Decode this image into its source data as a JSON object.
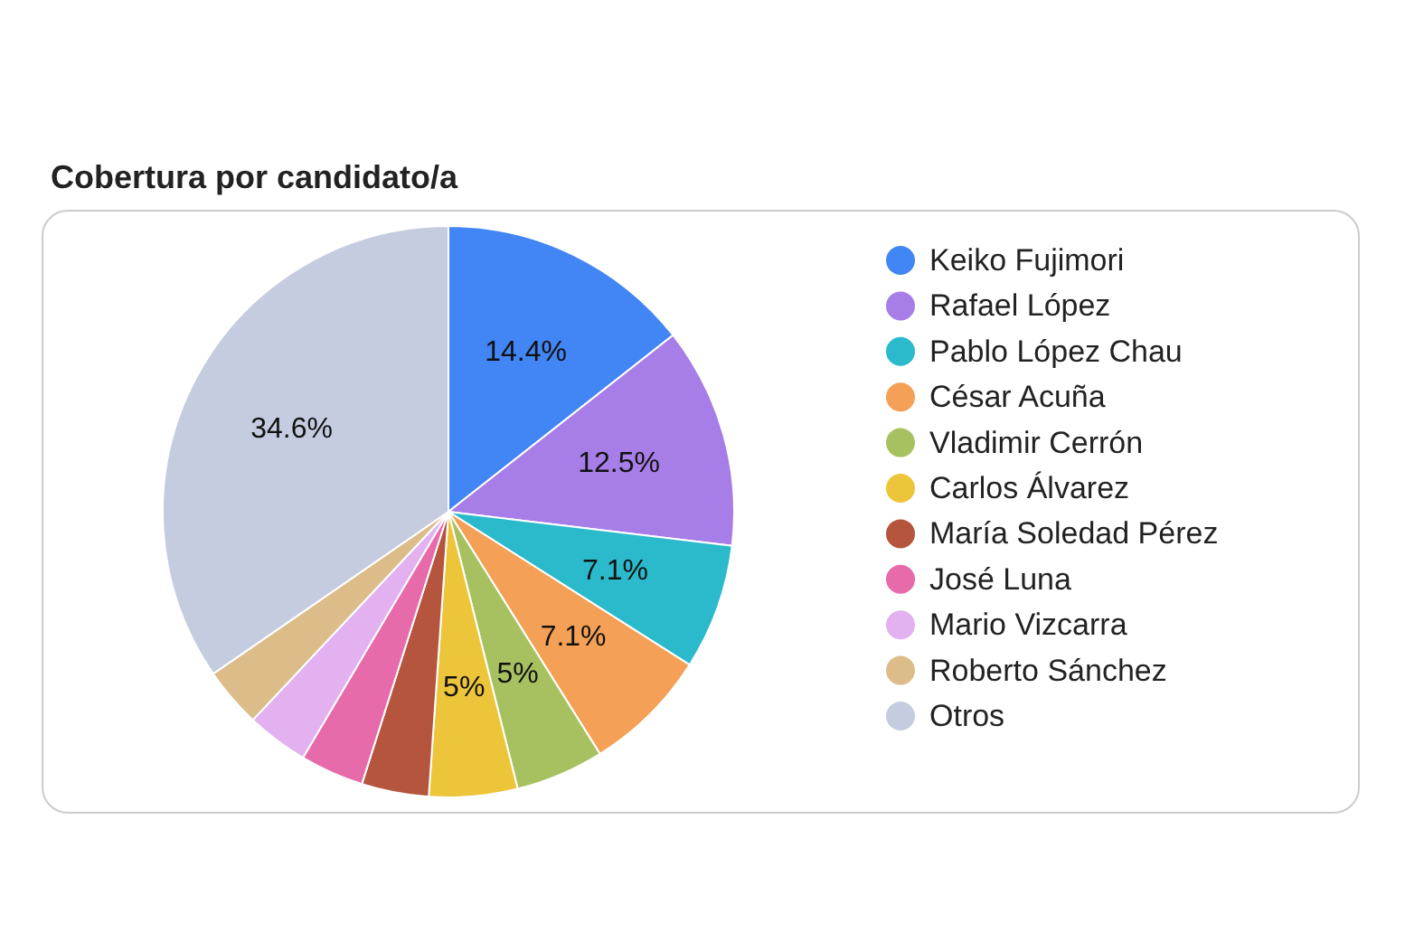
{
  "chart_data": {
    "type": "pie",
    "title": "Cobertura por candidato/a",
    "categories": [
      "Keiko Fujimori",
      "Rafael López",
      "Pablo López Chau",
      "César Acuña",
      "Vladimir Cerrón",
      "Carlos Álvarez",
      "María Soledad Pérez",
      "José Luna",
      "Mario Vizcarra",
      "Roberto Sánchez",
      "Otros"
    ],
    "values": [
      14.4,
      12.5,
      7.1,
      7.1,
      5,
      5,
      3.8,
      3.6,
      3.5,
      3.4,
      34.6
    ],
    "colors": [
      "#4285f4",
      "#a77de8",
      "#2bbacc",
      "#f4a056",
      "#a8c160",
      "#edc53a",
      "#b5553d",
      "#e76aab",
      "#e3b0f0",
      "#dcbd8a",
      "#c5cce0"
    ],
    "value_labels": [
      "14.4%",
      "12.5%",
      "7.1%",
      "7.1%",
      "5%",
      "5%",
      null,
      null,
      null,
      null,
      "34.6%"
    ],
    "legend": "right"
  }
}
